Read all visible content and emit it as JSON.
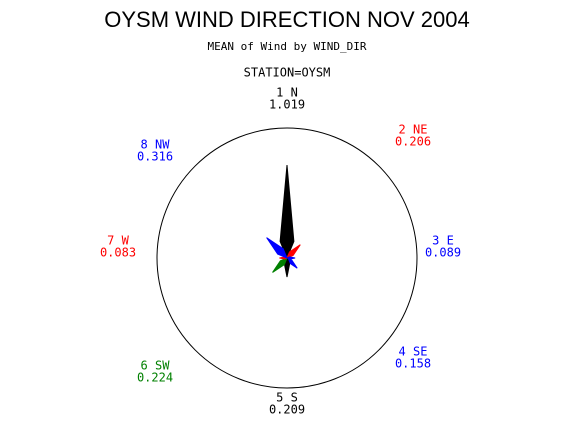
{
  "chart_data": {
    "type": "star",
    "title": "OYSM WIND DIRECTION NOV 2004",
    "subtitle": "MEAN of Wind by WIND_DIR",
    "annotation": "STATION=OYSM",
    "categories": [
      "1 N",
      "2 NE",
      "3 E",
      "4 SE",
      "5 S",
      "6 SW",
      "7 W",
      "8 NW"
    ],
    "values": [
      1.019,
      0.206,
      0.089,
      0.158,
      0.209,
      0.224,
      0.083,
      0.316
    ],
    "colors": [
      "#000000",
      "#ff0000",
      "#0000ff",
      "#0000ff",
      "#000000",
      "#008000",
      "#ff0000",
      "#0000ff"
    ]
  }
}
